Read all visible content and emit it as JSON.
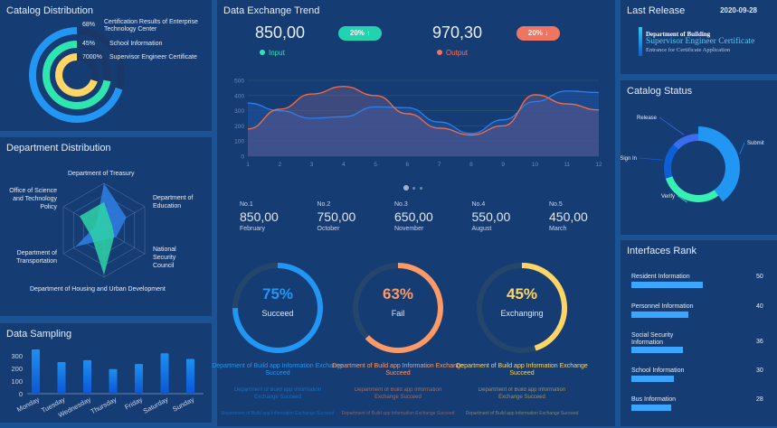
{
  "colors": {
    "panel": "#163c74",
    "blue": "#2196f3",
    "green": "#2ee6b0",
    "yellow": "#ffd666",
    "orange": "#ff8a5c",
    "red": "#f07462"
  },
  "catalog_distribution": {
    "title": "Catalog Distribution",
    "items": [
      {
        "pct": "68%",
        "label": "Certification Results of Enterprise Technology Center",
        "color": "#2196f3"
      },
      {
        "pct": "45%",
        "label": "School Information",
        "color": "#2ee6b0"
      },
      {
        "pct": "7000%",
        "label": "Supervisor Engineer Certificate",
        "color": "#ffd666"
      }
    ]
  },
  "department_distribution": {
    "title": "Department Distribution",
    "axes": [
      "Department of Treasury",
      "Department of Education",
      "National Security Council",
      "Department of Housing and Urban Development",
      "Department of Transportation",
      "Office of Science and Technology Policy"
    ],
    "series": [
      {
        "color": "#2f7fe6",
        "values": [
          1.0,
          0.55,
          0.3,
          0.2,
          0.7,
          0.2
        ]
      },
      {
        "color": "#2ed3a8",
        "values": [
          0.6,
          0.2,
          0.25,
          0.95,
          0.3,
          0.6
        ]
      }
    ]
  },
  "data_sampling": {
    "title": "Data Sampling",
    "chart_data": {
      "type": "bar",
      "categories": [
        "Monday",
        "Tuesday",
        "Wednesday",
        "Thursday",
        "Friday",
        "Saturday",
        "Sunday"
      ],
      "values": [
        350,
        250,
        265,
        195,
        235,
        320,
        275
      ],
      "yticks": [
        "0",
        "100",
        "200",
        "300"
      ],
      "ylim": [
        0,
        350
      ]
    }
  },
  "trend": {
    "title": "Data Exchange Trend",
    "input": {
      "value": "850,00",
      "badge": "20% ↑",
      "label": "Input"
    },
    "output": {
      "value": "970,30",
      "badge": "20% ↓",
      "label": "Output"
    },
    "chart_data": {
      "type": "area",
      "x": [
        "1",
        "2",
        "3",
        "4",
        "5",
        "6",
        "7",
        "8",
        "9",
        "10",
        "11",
        "12"
      ],
      "yticks": [
        "0",
        "100",
        "200",
        "300",
        "400",
        "500"
      ],
      "ylim": [
        0,
        500
      ],
      "series": [
        {
          "color": "#2f7ff0",
          "values": [
            350,
            300,
            250,
            260,
            325,
            320,
            225,
            150,
            240,
            360,
            430,
            420
          ]
        },
        {
          "color": "#ff6b3d",
          "values": [
            180,
            310,
            410,
            460,
            400,
            280,
            185,
            140,
            200,
            405,
            345,
            305
          ]
        }
      ]
    }
  },
  "ranking": [
    {
      "rank": "No.1",
      "value": "850,00",
      "month": "February"
    },
    {
      "rank": "No.2",
      "value": "750,00",
      "month": "October"
    },
    {
      "rank": "No.3",
      "value": "650,00",
      "month": "November"
    },
    {
      "rank": "No.4",
      "value": "550,00",
      "month": "August"
    },
    {
      "rank": "No.5",
      "value": "450,00",
      "month": "March"
    }
  ],
  "gauges": [
    {
      "pct": "75%",
      "value": 0.75,
      "label": "Succeed",
      "color": "#2196f3",
      "line1": "Department of Build app Information Exchange Succeed",
      "line2": "Department of Build app Information Exchange Succeed",
      "line3": "Department of Build app Information Exchange Succeed"
    },
    {
      "pct": "63%",
      "value": 0.63,
      "label": "Fail",
      "color": "#ff9966",
      "line1": "Department of Build app Information Exchange Succeed",
      "line2": "Department of Build app Information Exchange Succeed",
      "line3": "Department of Build app Information Exchange Succeed"
    },
    {
      "pct": "45%",
      "value": 0.45,
      "label": "Exchanging",
      "color": "#ffd666",
      "line1": "Department of Build app Information Exchange Succeed",
      "line2": "Department of Build app Information Exchange Succeed",
      "line3": "Department of Build app Information Exchange Succeed"
    }
  ],
  "last_release": {
    "title": "Last Release",
    "date": "2020-09-28",
    "line1": "Department of Building",
    "line2": "Supervisor Engineer Certificate",
    "line3": "Entrance for Certificate Application"
  },
  "catalog_status": {
    "title": "Catalog Status",
    "chart_data": {
      "type": "pie",
      "labels": [
        "Submit",
        "Verify",
        "Sign In",
        "Release"
      ],
      "values": [
        40,
        30,
        17,
        13
      ],
      "colors": [
        "#2196f3",
        "#36f0b4",
        "#0d5fd6",
        "#3a6cf0"
      ]
    }
  },
  "interfaces_rank": {
    "title": "Interfaces Rank",
    "items": [
      {
        "label": "Resident Information",
        "value": "50"
      },
      {
        "label": "Personnel Information",
        "value": "40"
      },
      {
        "label": "Social Security Information",
        "value": "36"
      },
      {
        "label": "School Information",
        "value": "30"
      },
      {
        "label": "Bus Information",
        "value": "28"
      }
    ]
  }
}
